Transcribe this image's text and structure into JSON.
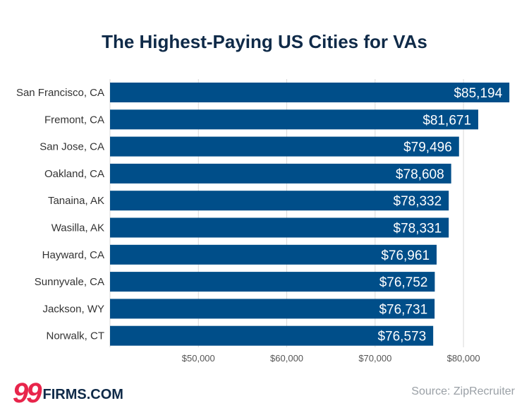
{
  "chart_data": {
    "type": "bar",
    "orientation": "horizontal",
    "title": "The Highest-Paying US Cities for VAs",
    "categories": [
      "San Francisco, CA",
      "Fremont, CA",
      "San Jose, CA",
      "Oakland, CA",
      "Tanaina, AK",
      "Wasilla, AK",
      "Hayward, CA",
      "Sunnyvale, CA",
      "Jackson, WY",
      "Norwalk, CT"
    ],
    "values": [
      85194,
      81671,
      79496,
      78608,
      78332,
      78331,
      76961,
      76752,
      76731,
      76573
    ],
    "value_labels": [
      "$85,194",
      "$81,671",
      "$79,496",
      "$78,608",
      "$78,332",
      "$78,331",
      "$76,961",
      "$76,752",
      "$76,731",
      "$76,573"
    ],
    "xlim": [
      40000,
      85500
    ],
    "xticks": [
      50000,
      60000,
      70000,
      80000
    ],
    "xtick_labels": [
      "$50,000",
      "$60,000",
      "$70,000",
      "$80,000"
    ],
    "grid": "vertical",
    "bar_color": "#004e89"
  },
  "footer": {
    "brand_number": "99",
    "brand_text": "FIRMS.COM",
    "source": "Source: ZipRecruiter"
  },
  "colors": {
    "title": "#0f2a48",
    "brand_accent": "#e8254b",
    "grid": "#d9d9d9"
  }
}
